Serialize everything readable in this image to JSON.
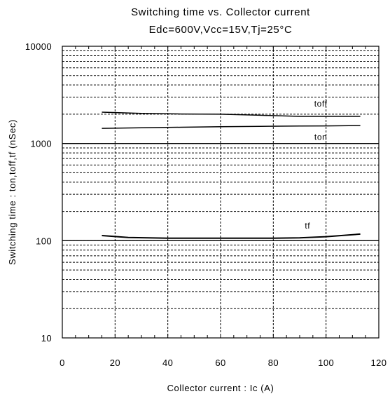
{
  "chart_data": {
    "type": "line",
    "title": "Switching time vs. Collector current",
    "subtitle": "Edc=600V,Vcc=15V,Tj=25°C",
    "xlabel": "Collector current : Ic (A)",
    "ylabel": "Switching time : ton,toff,tf (nSec)",
    "xlim": [
      0,
      120
    ],
    "ylim": [
      10,
      10000
    ],
    "yscale": "log",
    "grid": true,
    "x_ticks": [
      "0",
      "20",
      "40",
      "60",
      "80",
      "100",
      "120"
    ],
    "y_ticks": [
      "10",
      "100",
      "1000",
      "10000"
    ],
    "series": [
      {
        "name": "toff",
        "x": [
          15,
          30,
          45,
          60,
          75,
          90,
          100,
          113
        ],
        "y": [
          2100,
          2040,
          2010,
          2000,
          1950,
          1900,
          1900,
          1900
        ]
      },
      {
        "name": "ton",
        "x": [
          15,
          30,
          45,
          60,
          75,
          90,
          100,
          113
        ],
        "y": [
          1430,
          1450,
          1470,
          1490,
          1500,
          1510,
          1515,
          1530
        ]
      },
      {
        "name": "tf",
        "x": [
          15,
          25,
          40,
          60,
          80,
          90,
          100,
          113
        ],
        "y": [
          113,
          108,
          106,
          106,
          106,
          107,
          110,
          117
        ]
      }
    ]
  }
}
